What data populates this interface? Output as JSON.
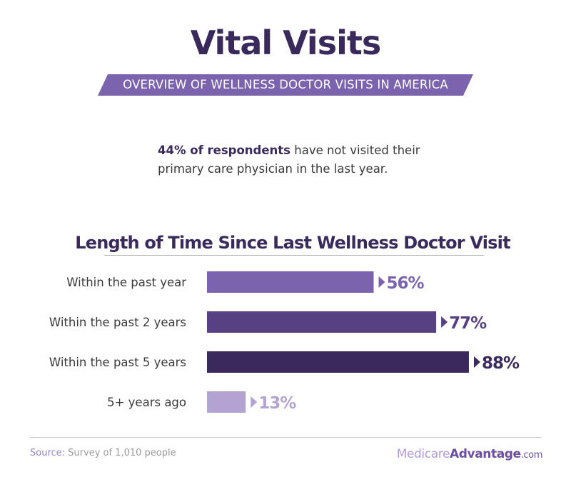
{
  "header": {
    "title": "Vital Visits",
    "subtitle": "OVERVIEW OF WELLNESS DOCTOR VISITS IN AMERICA"
  },
  "stat": {
    "highlight": "44% of respondents",
    "text": " have not visited their primary care physician in the last year."
  },
  "footer": {
    "source_label": "Source:",
    "source_text": " Survey of 1,010 people",
    "logo_part1": "Medicare",
    "logo_part2": "Advantage",
    "logo_part3": ".com"
  },
  "colors": {
    "title": "#3a2a5c",
    "banner": "#7b63ad",
    "bar_1": "#7b63ad",
    "bar_2": "#574183",
    "bar_3": "#3a2a5c",
    "bar_4": "#b3a3d3"
  },
  "chart_data": {
    "type": "bar",
    "orientation": "horizontal",
    "title": "Length of Time Since Last Wellness Doctor Visit",
    "categories": [
      "Within the past year",
      "Within the past 2 years",
      "Within the past 5 years",
      "5+ years ago"
    ],
    "values": [
      56,
      77,
      88,
      13
    ],
    "value_labels": [
      "56%",
      "77%",
      "88%",
      "13%"
    ],
    "unit": "%",
    "xlim": [
      0,
      100
    ],
    "grid": false,
    "legend": "none"
  }
}
